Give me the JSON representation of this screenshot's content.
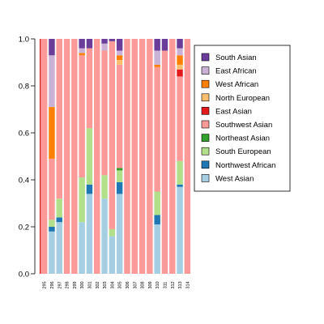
{
  "chart_data": {
    "type": "bar",
    "stacked": true,
    "ylim": [
      0,
      1
    ],
    "yticks": [
      "0.0",
      "0.2",
      "0.4",
      "0.6",
      "0.8",
      "1.0"
    ],
    "grid": false,
    "legend_position": "right",
    "categories": [
      "295",
      "296",
      "297",
      "298",
      "299",
      "300",
      "301",
      "302",
      "303",
      "304",
      "305",
      "306",
      "307",
      "308",
      "309",
      "310",
      "311",
      "312",
      "313",
      "314"
    ],
    "series": [
      {
        "name": "West Asian",
        "color": "#a6cee3",
        "values": [
          0.0,
          0.18,
          0.22,
          0.0,
          0.0,
          0.22,
          0.34,
          0.0,
          0.32,
          0.16,
          0.34,
          0.0,
          0.0,
          0.0,
          0.0,
          0.21,
          0.0,
          0.0,
          0.37,
          0.0
        ]
      },
      {
        "name": "Northwest African",
        "color": "#1f78b4",
        "values": [
          0.0,
          0.02,
          0.02,
          0.0,
          0.0,
          0.0,
          0.04,
          0.0,
          0.0,
          0.0,
          0.05,
          0.0,
          0.0,
          0.0,
          0.0,
          0.04,
          0.0,
          0.0,
          0.01,
          0.0
        ]
      },
      {
        "name": "South European",
        "color": "#b2df8a",
        "values": [
          0.0,
          0.03,
          0.08,
          0.0,
          0.0,
          0.19,
          0.24,
          0.0,
          0.1,
          0.03,
          0.05,
          0.0,
          0.0,
          0.0,
          0.0,
          0.1,
          0.0,
          0.0,
          0.1,
          0.0
        ]
      },
      {
        "name": "Northeast Asian",
        "color": "#33a02c",
        "values": [
          0.0,
          0.0,
          0.0,
          0.0,
          0.0,
          0.0,
          0.0,
          0.0,
          0.0,
          0.0,
          0.01,
          0.0,
          0.0,
          0.0,
          0.0,
          0.0,
          0.0,
          0.0,
          0.0,
          0.0
        ]
      },
      {
        "name": "Southwest Asian",
        "color": "#fb9a99",
        "values": [
          1.0,
          0.26,
          0.68,
          1.0,
          1.0,
          0.52,
          0.34,
          1.0,
          0.53,
          0.8,
          0.44,
          1.0,
          1.0,
          1.0,
          1.0,
          0.53,
          0.95,
          1.0,
          0.36,
          1.0
        ]
      },
      {
        "name": "East Asian",
        "color": "#e31a1c",
        "values": [
          0.0,
          0.0,
          0.0,
          0.0,
          0.0,
          0.0,
          0.0,
          0.0,
          0.0,
          0.0,
          0.0,
          0.0,
          0.0,
          0.0,
          0.0,
          0.0,
          0.0,
          0.0,
          0.03,
          0.0
        ]
      },
      {
        "name": "North European",
        "color": "#fdbf6f",
        "values": [
          0.0,
          0.0,
          0.0,
          0.0,
          0.0,
          0.0,
          0.0,
          0.0,
          0.0,
          0.0,
          0.02,
          0.0,
          0.0,
          0.0,
          0.0,
          0.0,
          0.0,
          0.0,
          0.02,
          0.0
        ]
      },
      {
        "name": "West African",
        "color": "#ff7f00",
        "values": [
          0.0,
          0.22,
          0.0,
          0.0,
          0.0,
          0.01,
          0.0,
          0.0,
          0.0,
          0.0,
          0.02,
          0.0,
          0.0,
          0.0,
          0.0,
          0.01,
          0.0,
          0.0,
          0.04,
          0.0
        ]
      },
      {
        "name": "East African",
        "color": "#cab2d6",
        "values": [
          0.0,
          0.22,
          0.0,
          0.0,
          0.0,
          0.02,
          0.0,
          0.0,
          0.03,
          0.0,
          0.02,
          0.0,
          0.0,
          0.0,
          0.0,
          0.06,
          0.0,
          0.0,
          0.03,
          0.0
        ]
      },
      {
        "name": "South Asian",
        "color": "#6a3d9a",
        "values": [
          0.0,
          0.07,
          0.0,
          0.0,
          0.0,
          0.04,
          0.04,
          0.0,
          0.02,
          0.01,
          0.05,
          0.0,
          0.0,
          0.0,
          0.0,
          0.05,
          0.05,
          0.0,
          0.04,
          0.0
        ]
      }
    ],
    "legend_order": [
      "South Asian",
      "East African",
      "West African",
      "North European",
      "East Asian",
      "Southwest Asian",
      "Northeast Asian",
      "South European",
      "Northwest African",
      "West Asian"
    ]
  }
}
